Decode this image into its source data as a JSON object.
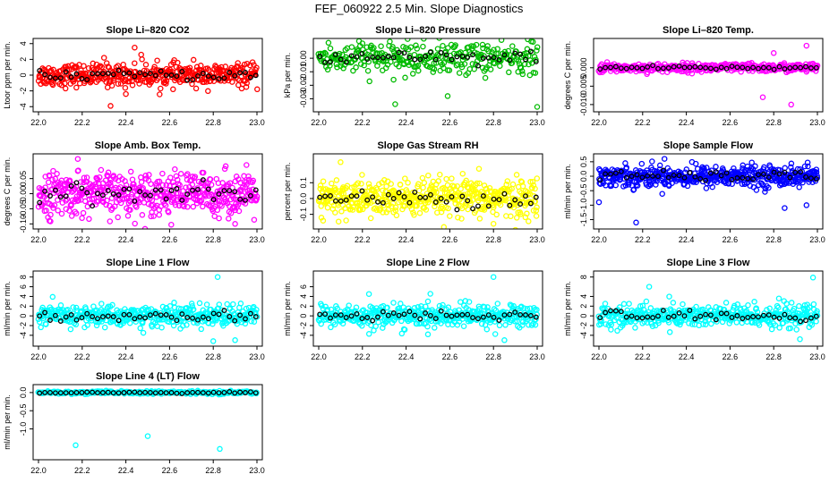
{
  "page": {
    "title": "FEF_060922  2.5 Min. Slope Diagnostics"
  },
  "series_colors": {
    "co2": "#ff0000",
    "pressure": "#00bb00",
    "temp": "#ff00ff",
    "box_temp": "#ff00ff",
    "rh": "#ffff00",
    "sample_flow": "#0000ff",
    "line_flow": "#00ffff",
    "highlight": "#000000"
  },
  "chart_data": [
    {
      "id": "co2",
      "type": "scatter",
      "title": "Slope Li–820 CO2",
      "ylabel": "Ltoor ppm per min.",
      "xlim": [
        22.0,
        23.0
      ],
      "xticks": [
        "22.0",
        "22.2",
        "22.4",
        "22.6",
        "22.8",
        "23.0"
      ],
      "ylim": [
        -4.2,
        4.2
      ],
      "yticks": [
        -4,
        -2,
        0,
        2,
        4
      ],
      "ytick_labels": [
        "-4",
        "-2",
        "0",
        "2",
        "4"
      ],
      "color": "#ff0000",
      "n_points": 420,
      "spread": 0.7,
      "outliers": [
        [
          22.33,
          -3.9
        ],
        [
          22.44,
          3.5
        ],
        [
          22.4,
          -2.4
        ],
        [
          22.47,
          2.6
        ],
        [
          22.3,
          2.2
        ]
      ]
    },
    {
      "id": "pressure",
      "type": "scatter",
      "title": "Slope Li–820 Pressure",
      "ylabel": "kPa per min.",
      "xlim": [
        22.0,
        23.0
      ],
      "xticks": [
        "22.0",
        "22.2",
        "22.4",
        "22.6",
        "22.8",
        "23.0"
      ],
      "ylim": [
        -0.037,
        0.012
      ],
      "yticks": [
        0.0,
        -0.01,
        -0.02,
        -0.03
      ],
      "ytick_labels": [
        "0.00",
        "-0.01",
        "-0.02",
        "-0.03"
      ],
      "color": "#00bb00",
      "n_points": 320,
      "spread": 0.006,
      "outliers": [
        [
          22.35,
          -0.034
        ],
        [
          22.59,
          -0.028
        ],
        [
          23.0,
          -0.036
        ],
        [
          22.2,
          0.011
        ],
        [
          22.75,
          0.01
        ]
      ]
    },
    {
      "id": "temp",
      "type": "scatter",
      "title": "Slope Li–820 Temp.",
      "ylabel": "degrees C per min.",
      "xlim": [
        22.0,
        23.0
      ],
      "xticks": [
        "22.0",
        "22.2",
        "22.4",
        "22.6",
        "22.8",
        "23.0"
      ],
      "ylim": [
        -0.011,
        0.007
      ],
      "yticks": [
        0.0,
        -0.005,
        -0.01
      ],
      "ytick_labels": [
        "0.000",
        "-0.005",
        "-0.010"
      ],
      "color": "#ff00ff",
      "n_points": 380,
      "spread": 0.0006,
      "outliers": [
        [
          22.75,
          -0.008
        ],
        [
          22.88,
          -0.01
        ],
        [
          22.95,
          0.006
        ],
        [
          22.8,
          0.004
        ]
      ]
    },
    {
      "id": "box_temp",
      "type": "scatter",
      "title": "Slope Amb. Box Temp.",
      "ylabel": "degrees C per min.",
      "xlim": [
        22.0,
        23.0
      ],
      "xticks": [
        "22.0",
        "22.2",
        "22.4",
        "22.6",
        "22.8",
        "23.0"
      ],
      "ylim": [
        -0.105,
        0.12
      ],
      "yticks": [
        0.05,
        0.0,
        -0.05,
        -0.1
      ],
      "ytick_labels": [
        "0.05",
        "0.00",
        "-0.05",
        "-0.10"
      ],
      "color": "#ff00ff",
      "n_points": 500,
      "spread": 0.035,
      "outliers": [
        [
          22.18,
          0.115
        ],
        [
          22.9,
          -0.1
        ],
        [
          22.05,
          -0.09
        ]
      ]
    },
    {
      "id": "rh",
      "type": "scatter",
      "title": "Slope Gas Stream RH",
      "ylabel": "percent per min.",
      "xlim": [
        22.0,
        23.0
      ],
      "xticks": [
        "22.0",
        "22.2",
        "22.4",
        "22.6",
        "22.8",
        "23.0"
      ],
      "ylim": [
        -0.17,
        0.26
      ],
      "yticks": [
        0.1,
        0.0,
        -0.1
      ],
      "ytick_labels": [
        "0.1",
        "0.0",
        "-0.1"
      ],
      "color": "#ffff00",
      "n_points": 500,
      "spread": 0.06,
      "outliers": [
        [
          22.1,
          0.23
        ],
        [
          22.8,
          -0.16
        ],
        [
          22.02,
          -0.14
        ]
      ]
    },
    {
      "id": "sample_flow",
      "type": "scatter",
      "title": "Slope Sample Flow",
      "ylabel": "ml/min per min.",
      "xlim": [
        22.0,
        23.0
      ],
      "xticks": [
        "22.0",
        "22.2",
        "22.4",
        "22.6",
        "22.8",
        "23.0"
      ],
      "ylim": [
        -1.7,
        0.65
      ],
      "yticks": [
        0.5,
        0.0,
        -0.5,
        -1.0,
        -1.5
      ],
      "ytick_labels": [
        "0.5",
        "0.0",
        "-0.5",
        "-1.0",
        "-1.5"
      ],
      "color": "#0000ff",
      "n_points": 500,
      "spread": 0.18,
      "outliers": [
        [
          22.17,
          -1.6
        ],
        [
          22.3,
          0.6
        ],
        [
          22.95,
          -1.0
        ],
        [
          22.85,
          -1.1
        ],
        [
          22.0,
          -0.9
        ]
      ]
    },
    {
      "id": "line1",
      "type": "scatter",
      "title": "Slope Line 1 Flow",
      "ylabel": "ml/min per min.",
      "xlim": [
        22.0,
        23.0
      ],
      "xticks": [
        "22.0",
        "22.2",
        "22.4",
        "22.6",
        "22.8",
        "23.0"
      ],
      "ylim": [
        -5.5,
        8.5
      ],
      "yticks": [
        8,
        6,
        4,
        2,
        0,
        -2,
        -4
      ],
      "ytick_labels": [
        "8",
        "6",
        "4",
        "2",
        "0",
        "-2",
        "-4"
      ],
      "color": "#00ffff",
      "n_points": 420,
      "spread": 1.1,
      "outliers": [
        [
          22.82,
          8.0
        ],
        [
          22.8,
          -5.2
        ],
        [
          22.9,
          -5.0
        ],
        [
          22.48,
          -3.5
        ]
      ]
    },
    {
      "id": "line2",
      "type": "scatter",
      "title": "Slope Line 2 Flow",
      "ylabel": "ml/min per min.",
      "xlim": [
        22.0,
        23.0
      ],
      "xticks": [
        "22.0",
        "22.2",
        "22.4",
        "22.6",
        "22.8",
        "23.0"
      ],
      "ylim": [
        -5.5,
        8.5
      ],
      "yticks": [
        6,
        4,
        2,
        0,
        -2,
        -4
      ],
      "ytick_labels": [
        "6",
        "4",
        "2",
        "0",
        "-2",
        "-4"
      ],
      "color": "#00ffff",
      "n_points": 420,
      "spread": 1.2,
      "outliers": [
        [
          22.8,
          8.0
        ],
        [
          22.85,
          -5.0
        ],
        [
          22.5,
          -3.8
        ],
        [
          22.23,
          4.5
        ]
      ]
    },
    {
      "id": "line3",
      "type": "scatter",
      "title": "Slope Line 3 Flow",
      "ylabel": "ml/min per min.",
      "xlim": [
        22.0,
        23.0
      ],
      "xticks": [
        "22.0",
        "22.2",
        "22.4",
        "22.6",
        "22.8",
        "23.0"
      ],
      "ylim": [
        -5.5,
        8.5
      ],
      "yticks": [
        8,
        4,
        2,
        0,
        -2,
        -4
      ],
      "ytick_labels": [
        "8",
        "4",
        "2",
        "0",
        "-2",
        "-4"
      ],
      "color": "#00ffff",
      "n_points": 420,
      "spread": 1.2,
      "outliers": [
        [
          22.98,
          7.9
        ],
        [
          22.92,
          -4.8
        ],
        [
          22.23,
          6.0
        ]
      ]
    },
    {
      "id": "line4",
      "type": "scatter",
      "title": "Slope Line 4 (LT) Flow",
      "ylabel": "ml/min per min.",
      "xlim": [
        22.0,
        23.0
      ],
      "xticks": [
        "22.0",
        "22.2",
        "22.4",
        "22.6",
        "22.8",
        "23.0"
      ],
      "ylim": [
        -1.75,
        0.12
      ],
      "yticks": [
        0.0,
        -0.5,
        -1.0
      ],
      "ytick_labels": [
        "0.0",
        "-0.5",
        "-1.0"
      ],
      "color": "#00ffff",
      "n_points": 260,
      "spread": 0.02,
      "outliers": [
        [
          22.17,
          -1.45
        ],
        [
          22.5,
          -1.2
        ],
        [
          22.83,
          -1.55
        ]
      ]
    }
  ]
}
